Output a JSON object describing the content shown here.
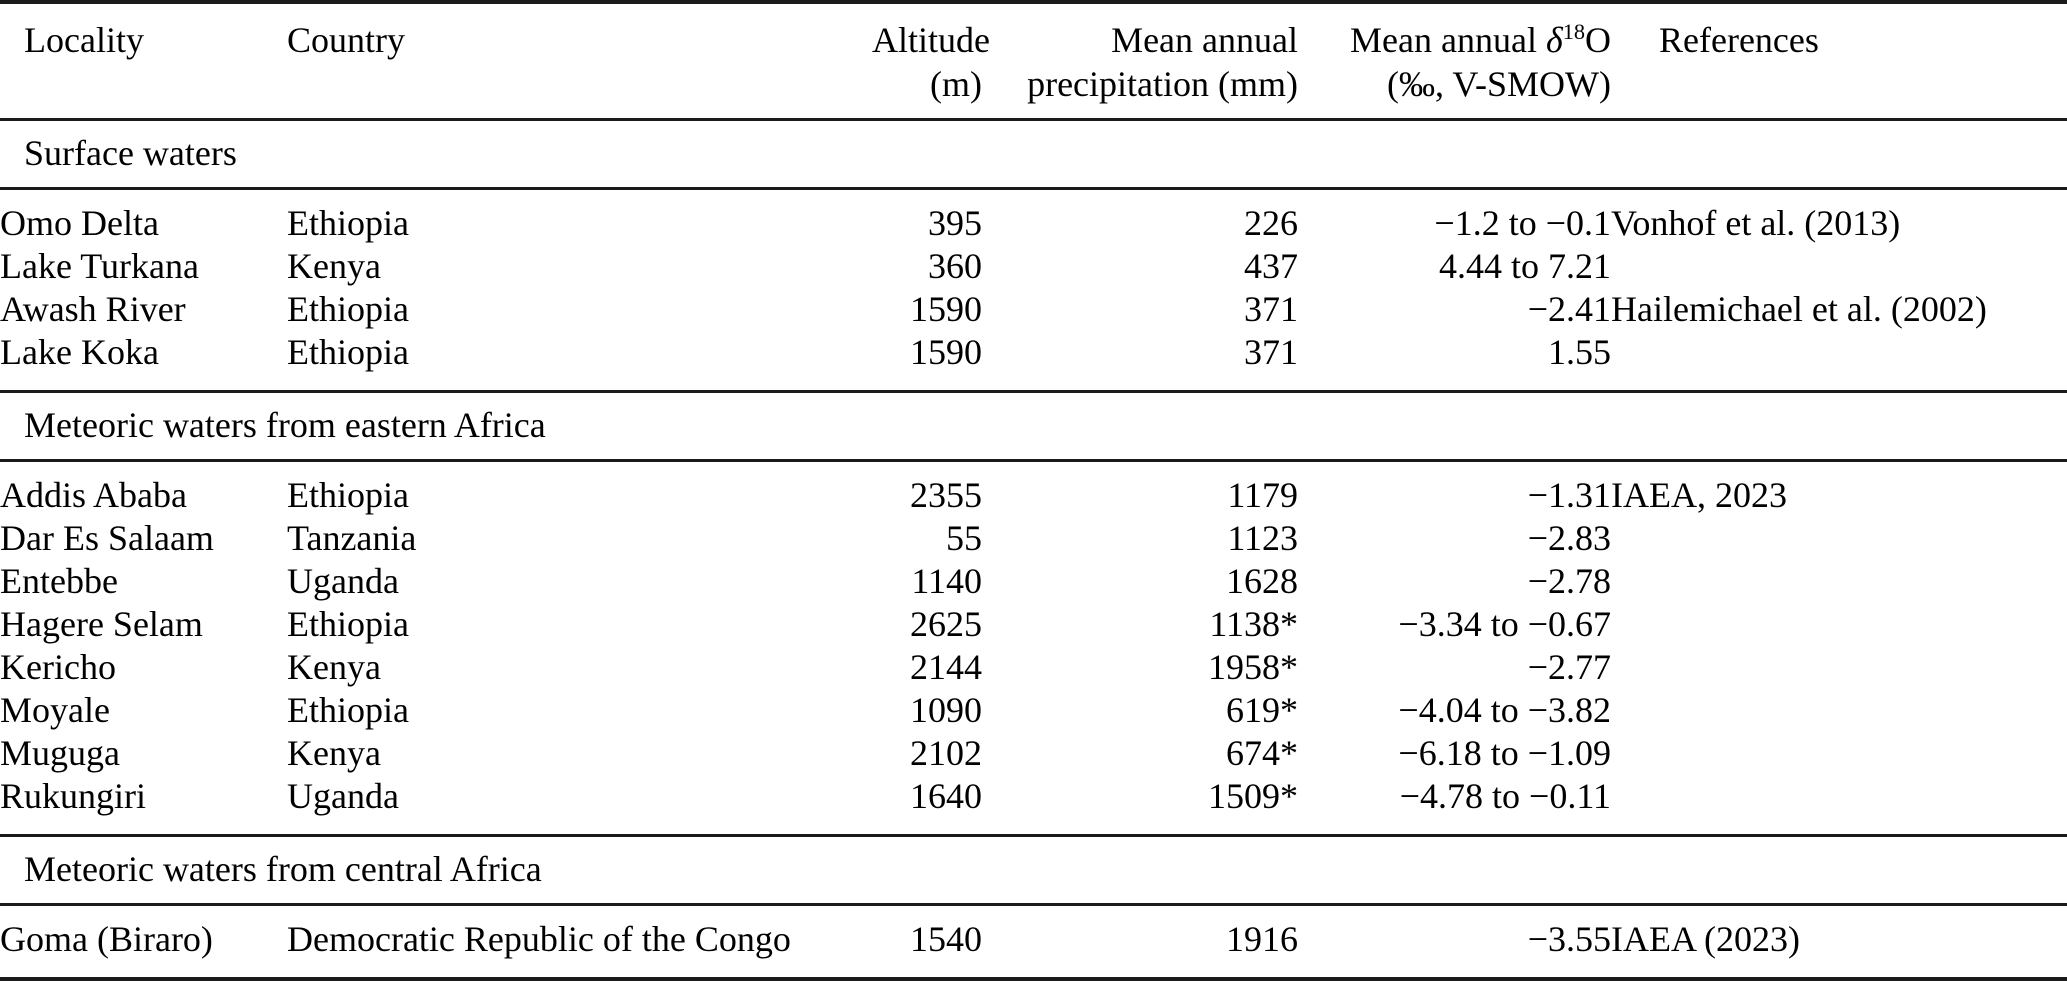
{
  "table": {
    "headers": {
      "locality": "Locality",
      "country": "Country",
      "altitude_line1": "Altitude",
      "altitude_line2": "(m)",
      "precip_line1": "Mean annual",
      "precip_line2": "precipitation (mm)",
      "d18o_text": "Mean annual ",
      "d18o_delta": "δ",
      "d18o_sup": "18",
      "d18o_element": "O",
      "d18o_line2": "(‰, V-SMOW)",
      "references": "References"
    },
    "sections": [
      {
        "label": "Surface waters",
        "rows": [
          {
            "locality": "Omo Delta",
            "country": "Ethiopia",
            "altitude": "395",
            "precip": "226",
            "d18o": "−1.2 to −0.1",
            "reference": "Vonhof et al. (2013)"
          },
          {
            "locality": "Lake Turkana",
            "country": "Kenya",
            "altitude": "360",
            "precip": "437",
            "d18o": "4.44 to 7.21",
            "reference": ""
          },
          {
            "locality": "Awash River",
            "country": "Ethiopia",
            "altitude": "1590",
            "precip": "371",
            "d18o": "−2.41",
            "reference": "Hailemichael et al. (2002)"
          },
          {
            "locality": "Lake Koka",
            "country": "Ethiopia",
            "altitude": "1590",
            "precip": "371",
            "d18o": "1.55",
            "reference": ""
          }
        ]
      },
      {
        "label": "Meteoric waters from eastern Africa",
        "rows": [
          {
            "locality": "Addis Ababa",
            "country": "Ethiopia",
            "altitude": "2355",
            "precip": "1179",
            "d18o": "−1.31",
            "reference": "IAEA, 2023"
          },
          {
            "locality": "Dar Es Salaam",
            "country": "Tanzania",
            "altitude": "55",
            "precip": "1123",
            "d18o": "−2.83",
            "reference": ""
          },
          {
            "locality": "Entebbe",
            "country": "Uganda",
            "altitude": "1140",
            "precip": "1628",
            "d18o": "−2.78",
            "reference": ""
          },
          {
            "locality": "Hagere Selam",
            "country": "Ethiopia",
            "altitude": "2625",
            "precip": "1138*",
            "d18o": "−3.34 to −0.67",
            "reference": ""
          },
          {
            "locality": "Kericho",
            "country": "Kenya",
            "altitude": "2144",
            "precip": "1958*",
            "d18o": "−2.77",
            "reference": ""
          },
          {
            "locality": "Moyale",
            "country": "Ethiopia",
            "altitude": "1090",
            "precip": "619*",
            "d18o": "−4.04 to −3.82",
            "reference": ""
          },
          {
            "locality": "Muguga",
            "country": "Kenya",
            "altitude": "2102",
            "precip": "674*",
            "d18o": "−6.18 to −1.09",
            "reference": ""
          },
          {
            "locality": "Rukungiri",
            "country": "Uganda",
            "altitude": "1640",
            "precip": "1509*",
            "d18o": "−4.78 to −0.11",
            "reference": ""
          }
        ]
      },
      {
        "label": "Meteoric waters from central Africa",
        "rows": [
          {
            "locality": "Goma (Biraro)",
            "country": "Democratic Republic of the Congo",
            "altitude": "1540",
            "precip": "1916",
            "d18o": "−3.55",
            "reference": "IAEA (2023)"
          }
        ]
      }
    ]
  }
}
